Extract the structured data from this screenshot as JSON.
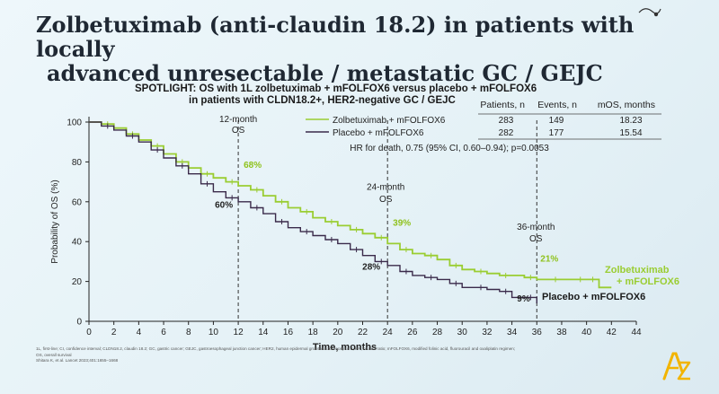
{
  "slide": {
    "title_line1": "Zolbetuximab (anti-claudin 18.2) in patients with locally",
    "title_line2": "advanced unresectable / metastatic GC / GEJC",
    "subtitle_line1": "SPOTLIGHT: OS with 1L zolbetuximab + mFOLFOX6 versus placebo + mFOLFOX6",
    "subtitle_line2": "in patients with CLDN18.2+, HER2-negative GC / GEJC",
    "footnote_lines": [
      "1L, first-line; CI, confidence interval; CLDN18.2, claudin 18.2; GC, gastric cancer; GEJC, gastroesophageal junction cancer; HER2, human epidermal growth factor receptor 2; HR, hazard ratio; mFOLFOX6, modified folinic acid, fluorouracil and oxaliplatin regimen;",
      "OS, overall survival",
      "Shitara K, et al. Lancet 2023;401:1655–1668"
    ],
    "logo_icon": "az-logo-icon",
    "corner_icon": "pointer-icon"
  },
  "table": {
    "headers": [
      "Patients, n",
      "Events, n",
      "mOS, months"
    ],
    "rows": [
      {
        "label": "Zolbetuximab + mFOLFOX6",
        "patients": "283",
        "events": "149",
        "mos": "18.23",
        "color": "#9acd32"
      },
      {
        "label": "Placebo + mFOLFOX6",
        "patients": "282",
        "events": "177",
        "mos": "15.54",
        "color": "#3a2a4a"
      }
    ],
    "hr_text": "HR for death, 0.75 (95% CI, 0.60–0.94); p=0.0053"
  },
  "chart_data": {
    "type": "line",
    "xlabel": "Time, months",
    "ylabel": "Probability of OS (%)",
    "xlim": [
      0,
      44
    ],
    "ylim": [
      0,
      100
    ],
    "xticks": [
      0,
      2,
      4,
      6,
      8,
      10,
      12,
      14,
      16,
      18,
      20,
      22,
      24,
      26,
      28,
      30,
      32,
      34,
      36,
      38,
      40,
      42,
      44
    ],
    "yticks": [
      0,
      20,
      40,
      60,
      80,
      100
    ],
    "series": [
      {
        "name": "Zolbetuximab + mFOLFOX6",
        "color": "#9acd32",
        "x": [
          0,
          1,
          2,
          3,
          4,
          5,
          6,
          7,
          8,
          9,
          10,
          11,
          12,
          13,
          14,
          15,
          16,
          17,
          18,
          19,
          20,
          21,
          22,
          23,
          24,
          25,
          26,
          27,
          28,
          29,
          30,
          31,
          32,
          33,
          34,
          35,
          36,
          37,
          38,
          39,
          40,
          40.5,
          41,
          42
        ],
        "y": [
          100,
          99,
          97,
          94,
          91,
          88,
          84,
          80,
          77,
          74,
          72,
          70,
          68,
          66,
          63,
          60,
          57,
          55,
          52,
          50,
          48,
          46,
          44,
          42,
          39,
          36,
          34,
          33,
          31,
          28,
          26,
          25,
          24,
          23,
          23,
          22,
          21,
          21,
          21,
          21,
          21,
          21,
          17,
          17
        ]
      },
      {
        "name": "Placebo + mFOLFOX6",
        "color": "#3a2a4a",
        "x": [
          0,
          1,
          2,
          3,
          4,
          5,
          6,
          7,
          8,
          9,
          10,
          11,
          12,
          13,
          14,
          15,
          16,
          17,
          18,
          19,
          20,
          21,
          22,
          23,
          24,
          25,
          26,
          27,
          28,
          29,
          30,
          31,
          32,
          33,
          34,
          35,
          36
        ],
        "y": [
          100,
          98,
          96,
          93,
          90,
          86,
          82,
          78,
          74,
          69,
          65,
          62,
          60,
          57,
          54,
          50,
          47,
          45,
          43,
          41,
          39,
          36,
          33,
          30,
          28,
          25,
          23,
          22,
          21,
          19,
          17,
          17,
          16,
          15,
          12,
          12,
          9
        ]
      }
    ],
    "annotations": [
      {
        "label": "12-month",
        "sublabel": "OS",
        "x": 12,
        "values": [
          "68%",
          "60%"
        ]
      },
      {
        "label": "24-month",
        "sublabel": "OS",
        "x": 24,
        "values": [
          "39%",
          "28%"
        ]
      },
      {
        "label": "36-month",
        "sublabel": "OS",
        "x": 36,
        "values": [
          "21%",
          "9%"
        ]
      }
    ],
    "series_labels": [
      {
        "line1": "Zolbetuximab",
        "line2": "+ mFOLFOX6",
        "color": "#9acd32"
      },
      {
        "line1": "Placebo + mFOLFOX6",
        "color": "#1a1a1a"
      }
    ]
  }
}
